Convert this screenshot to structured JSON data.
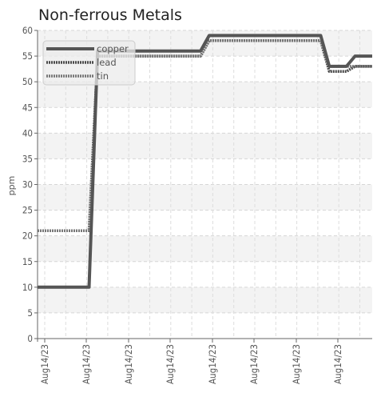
{
  "chart_data": {
    "type": "line",
    "title": "Non-ferrous Metals",
    "xlabel": "",
    "ylabel": "ppm",
    "ylim": [
      0,
      60
    ],
    "y_ticks": [
      0,
      5,
      10,
      15,
      20,
      25,
      30,
      35,
      40,
      45,
      50,
      55,
      60
    ],
    "x_tick_labels": [
      "Aug14/23",
      "Aug14/23",
      "Aug14/23",
      "Aug14/23",
      "Aug14/23",
      "Aug14/23",
      "Aug14/23",
      "Aug14/23"
    ],
    "x": [
      1,
      2,
      3,
      4,
      5,
      6,
      7,
      8,
      9,
      10,
      11,
      12,
      13,
      14,
      15,
      16,
      17,
      18,
      19,
      20,
      21,
      22,
      23,
      24,
      25,
      26,
      27,
      28,
      29,
      30,
      31,
      32,
      33,
      34,
      35,
      36,
      37,
      38,
      39,
      40
    ],
    "xlim": [
      1,
      40
    ],
    "series": [
      {
        "name": "copper",
        "color": "#555555",
        "style": "solid",
        "values": [
          10,
          10,
          10,
          10,
          10,
          10,
          10,
          56,
          56,
          56,
          56,
          56,
          56,
          56,
          56,
          56,
          56,
          56,
          56,
          56,
          59,
          59,
          59,
          59,
          59,
          59,
          59,
          59,
          59,
          59,
          59,
          59,
          59,
          59,
          53,
          53,
          53,
          55,
          55,
          55
        ]
      },
      {
        "name": "lead",
        "color": "#4a4a4a",
        "style": "dotted",
        "values": [
          21,
          21,
          21,
          21,
          21,
          21,
          21,
          55,
          55,
          55,
          55,
          55,
          55,
          55,
          55,
          55,
          55,
          55,
          55,
          55,
          58,
          58,
          58,
          58,
          58,
          58,
          58,
          58,
          58,
          58,
          58,
          58,
          58,
          58,
          52,
          52,
          52,
          53,
          53,
          53
        ]
      },
      {
        "name": "tin",
        "color": "#777777",
        "style": "dotted",
        "values": [
          21,
          21,
          21,
          21,
          21,
          21,
          21,
          55,
          55,
          55,
          55,
          55,
          55,
          55,
          55,
          55,
          55,
          55,
          55,
          55,
          58,
          58,
          58,
          58,
          58,
          58,
          58,
          58,
          58,
          58,
          58,
          58,
          58,
          58,
          53,
          53,
          53,
          53,
          53,
          53
        ]
      }
    ],
    "grid": true,
    "legend_position": "top-left"
  }
}
